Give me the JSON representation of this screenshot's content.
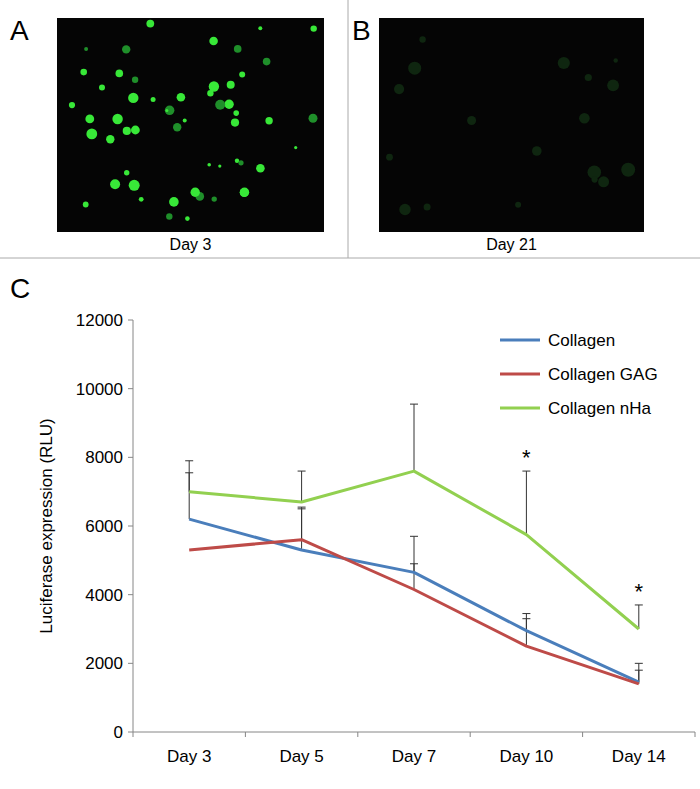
{
  "figure": {
    "panels": [
      {
        "label": "A",
        "caption": "Day 3"
      },
      {
        "label": "B",
        "caption": "Day 21"
      },
      {
        "label": "C"
      }
    ]
  },
  "chart_data": {
    "type": "line",
    "y_label": "Luciferase expression (RLU)",
    "categories": [
      "Day 3",
      "Day 5",
      "Day 7",
      "Day 10",
      "Day 14"
    ],
    "ylim": [
      0,
      12000
    ],
    "yticks": [
      0,
      2000,
      4000,
      6000,
      8000,
      10000,
      12000
    ],
    "grid": false,
    "legend": "top-right",
    "series": [
      {
        "name": "Collagen",
        "color": "#4a7ebb",
        "values": [
          6200,
          5300,
          4650,
          2950,
          1450
        ],
        "errors": [
          1350,
          1200,
          1050,
          500,
          550
        ]
      },
      {
        "name": "Collagen GAG",
        "color": "#be4b48",
        "values": [
          5300,
          5600,
          4150,
          2500,
          1400
        ],
        "errors": [
          null,
          950,
          750,
          800,
          400
        ]
      },
      {
        "name": "Collagen nHa",
        "color": "#92d050",
        "values": [
          7000,
          6700,
          7600,
          5750,
          3000
        ],
        "errors": [
          900,
          900,
          1950,
          1850,
          700
        ]
      }
    ],
    "annotations": [
      {
        "x": "Day 10",
        "text": "*"
      },
      {
        "x": "Day 14",
        "text": "*"
      }
    ]
  }
}
